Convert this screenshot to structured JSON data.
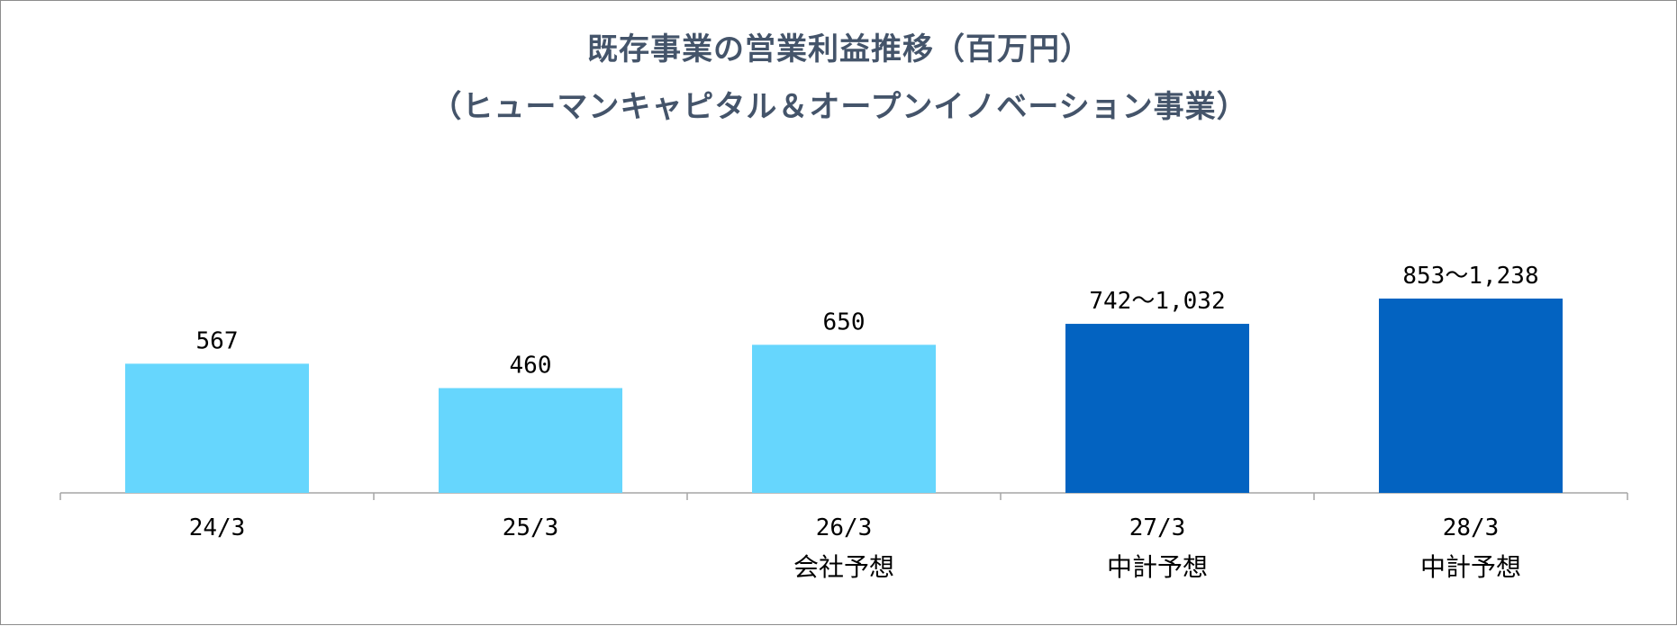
{
  "chart_data": {
    "type": "bar",
    "title": "既存事業の営業利益推移（百万円）",
    "subtitle": "（ヒューマンキャピタル＆オープンイノベーション事業）",
    "categories": [
      "24/3",
      "25/3",
      "26/3",
      "27/3",
      "28/3"
    ],
    "sublabels": [
      "",
      "",
      "会社予想",
      "中計予想",
      "中計予想"
    ],
    "values": [
      567,
      460,
      650,
      742,
      853
    ],
    "upper": [
      null,
      null,
      null,
      1032,
      1238
    ],
    "value_labels": [
      "567",
      "460",
      "650",
      "742〜1,032",
      "853〜1,238"
    ],
    "colors": [
      "#66d6fd",
      "#66d6fd",
      "#66d6fd",
      "#0363c1",
      "#0363c1"
    ],
    "ylim": [
      0,
      1100
    ],
    "grid": false,
    "legend": "none"
  }
}
